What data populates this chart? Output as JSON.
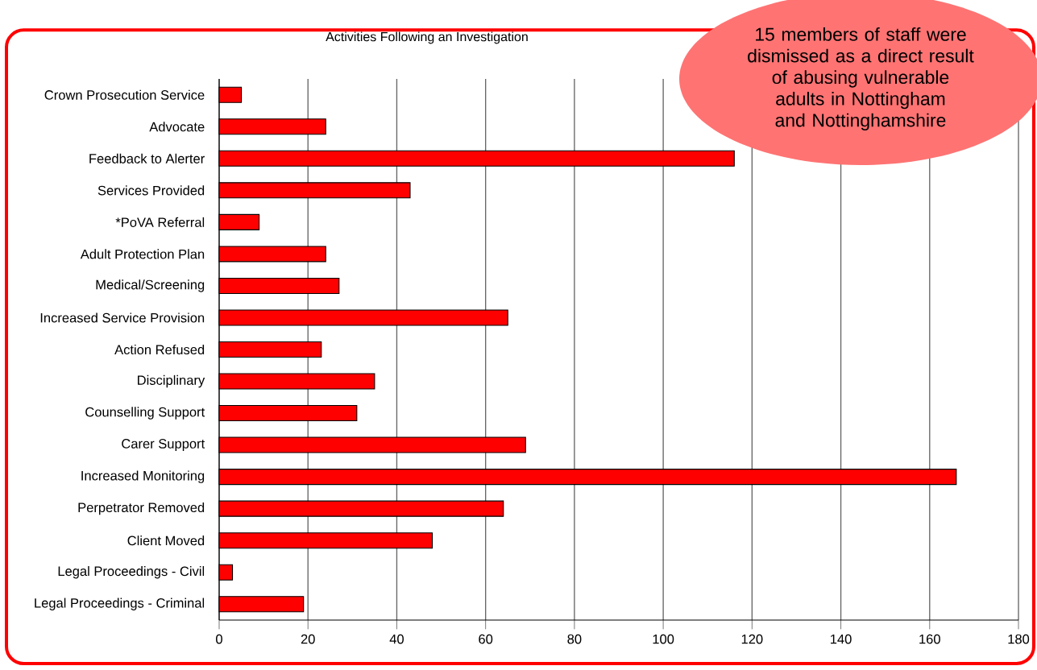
{
  "chart_data": {
    "type": "bar",
    "orientation": "horizontal",
    "title": "Activities Following an Investigation",
    "categories": [
      "Crown Prosecution Service",
      "Advocate",
      "Feedback to Alerter",
      "Services Provided",
      "*PoVA Referral",
      "Adult Protection Plan",
      "Medical/Screening",
      "Increased Service Provision",
      "Action Refused",
      "Disciplinary",
      "Counselling Support",
      "Carer Support",
      "Increased Monitoring",
      "Perpetrator Removed",
      "Client Moved",
      "Legal Proceedings - Civil",
      "Legal Proceedings - Criminal"
    ],
    "values": [
      5,
      24,
      116,
      43,
      9,
      24,
      27,
      65,
      23,
      35,
      31,
      69,
      166,
      64,
      48,
      3,
      19
    ],
    "color": "#ff0000",
    "xlim": [
      0,
      180
    ],
    "xticks": [
      0,
      20,
      40,
      60,
      80,
      100,
      120,
      140,
      160,
      180
    ],
    "grid": "x",
    "annotations": [
      "15 members of staff were dismissed as a direct result of abusing vulnerable adults in Nottingham and Nottinghamshire"
    ]
  }
}
